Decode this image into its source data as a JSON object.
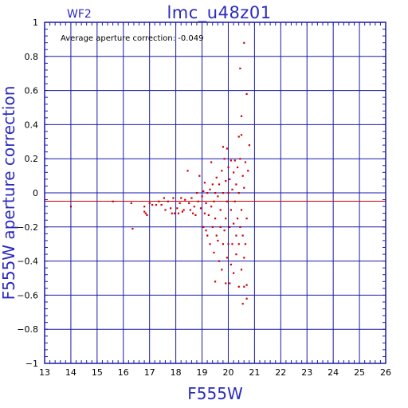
{
  "colors": {
    "grid": "#1a1aa8",
    "axis_frame": "#1a1aa8",
    "text_accent": "#2a2abf",
    "points": "#cc0000",
    "reference_line": "#cc0000"
  },
  "chart_data": {
    "type": "scatter",
    "title": "lmc_u48z01",
    "subtitle": "WF2",
    "annotation": "Average aperture correction: -0.049",
    "xlabel": "F555W",
    "ylabel": "F555W aperture correction",
    "xlim": [
      13,
      26
    ],
    "ylim": [
      -1,
      1
    ],
    "x_ticks": [
      13,
      14,
      15,
      16,
      17,
      18,
      19,
      20,
      21,
      22,
      23,
      24,
      25,
      26
    ],
    "y_ticks": [
      -1,
      -0.8,
      -0.6,
      -0.4,
      -0.2,
      0,
      0.2,
      0.4,
      0.6,
      0.8,
      1
    ],
    "x_tick_labels": [
      "13",
      "14",
      "15",
      "16",
      "17",
      "18",
      "19",
      "20",
      "21",
      "22",
      "23",
      "24",
      "25",
      "26"
    ],
    "y_tick_labels": [
      "−1",
      "−0.8",
      "−0.6",
      "−0.4",
      "−0.2",
      "0",
      "0.2",
      "0.4",
      "0.6",
      "0.8",
      "1"
    ],
    "grid": true,
    "reference_line_y": -0.049,
    "points": [
      [
        14.0,
        -0.08
      ],
      [
        15.6,
        -0.05
      ],
      [
        16.3,
        -0.06
      ],
      [
        16.35,
        -0.21
      ],
      [
        16.8,
        -0.08
      ],
      [
        16.8,
        -0.11
      ],
      [
        16.85,
        -0.12
      ],
      [
        16.9,
        -0.13
      ],
      [
        17.0,
        -0.06
      ],
      [
        17.1,
        -0.07
      ],
      [
        17.25,
        -0.07
      ],
      [
        17.35,
        -0.05
      ],
      [
        17.45,
        -0.07
      ],
      [
        17.55,
        -0.03
      ],
      [
        17.6,
        -0.1
      ],
      [
        17.7,
        -0.05
      ],
      [
        17.8,
        -0.09
      ],
      [
        17.85,
        -0.12
      ],
      [
        17.9,
        -0.03
      ],
      [
        17.95,
        -0.12
      ],
      [
        18.05,
        -0.09
      ],
      [
        18.1,
        -0.12
      ],
      [
        18.15,
        -0.06
      ],
      [
        18.2,
        -0.03
      ],
      [
        18.25,
        -0.11
      ],
      [
        18.3,
        -0.1
      ],
      [
        18.35,
        -0.04
      ],
      [
        18.45,
        0.13
      ],
      [
        18.5,
        -0.06
      ],
      [
        18.55,
        -0.1
      ],
      [
        18.6,
        -0.03
      ],
      [
        18.65,
        -0.12
      ],
      [
        18.7,
        -0.08
      ],
      [
        18.75,
        -0.13
      ],
      [
        18.8,
        0.0
      ],
      [
        18.85,
        -0.05
      ],
      [
        18.9,
        0.1
      ],
      [
        18.95,
        -0.09
      ],
      [
        19.0,
        -0.02
      ],
      [
        19.05,
        -0.2
      ],
      [
        19.05,
        0.01
      ],
      [
        19.1,
        -0.12
      ],
      [
        19.1,
        0.06
      ],
      [
        19.15,
        -0.22
      ],
      [
        19.15,
        -0.06
      ],
      [
        19.2,
        -0.25
      ],
      [
        19.2,
        0.0
      ],
      [
        19.25,
        -0.13
      ],
      [
        19.3,
        -0.3
      ],
      [
        19.3,
        0.02
      ],
      [
        19.35,
        -0.08
      ],
      [
        19.35,
        0.18
      ],
      [
        19.4,
        -0.2
      ],
      [
        19.4,
        0.05
      ],
      [
        19.45,
        -0.35
      ],
      [
        19.45,
        -0.05
      ],
      [
        19.5,
        -0.52
      ],
      [
        19.5,
        0.0
      ],
      [
        19.5,
        -0.15
      ],
      [
        19.55,
        -0.25
      ],
      [
        19.55,
        0.09
      ],
      [
        19.6,
        -0.28
      ],
      [
        19.6,
        -0.02
      ],
      [
        19.65,
        -0.4
      ],
      [
        19.65,
        0.05
      ],
      [
        19.7,
        -0.2
      ],
      [
        19.7,
        -0.1
      ],
      [
        19.75,
        -0.45
      ],
      [
        19.75,
        0.13
      ],
      [
        19.8,
        -0.3
      ],
      [
        19.8,
        0.0
      ],
      [
        19.8,
        0.27
      ],
      [
        19.85,
        -0.22
      ],
      [
        19.85,
        0.2
      ],
      [
        19.9,
        -0.53
      ],
      [
        19.9,
        -0.15
      ],
      [
        19.9,
        0.07
      ],
      [
        19.95,
        -0.38
      ],
      [
        19.95,
        -0.05
      ],
      [
        19.95,
        0.26
      ],
      [
        20.0,
        -0.3
      ],
      [
        20.0,
        0.0
      ],
      [
        20.0,
        0.15
      ],
      [
        20.05,
        -0.53
      ],
      [
        20.05,
        -0.2
      ],
      [
        20.05,
        0.08
      ],
      [
        20.1,
        -0.42
      ],
      [
        20.1,
        -0.1
      ],
      [
        20.1,
        0.19
      ],
      [
        20.15,
        -0.3
      ],
      [
        20.15,
        0.02
      ],
      [
        20.2,
        -0.47
      ],
      [
        20.2,
        -0.18
      ],
      [
        20.2,
        0.12
      ],
      [
        20.25,
        -0.05
      ],
      [
        20.25,
        0.19
      ],
      [
        20.3,
        -0.36
      ],
      [
        20.3,
        -0.25
      ],
      [
        20.3,
        0.05
      ],
      [
        20.35,
        -0.15
      ],
      [
        20.35,
        0.15
      ],
      [
        20.4,
        -0.55
      ],
      [
        20.4,
        -0.3
      ],
      [
        20.4,
        0.0
      ],
      [
        20.4,
        0.33
      ],
      [
        20.45,
        -0.2
      ],
      [
        20.45,
        0.2
      ],
      [
        20.45,
        0.73
      ],
      [
        20.5,
        -0.45
      ],
      [
        20.5,
        -0.1
      ],
      [
        20.5,
        0.45
      ],
      [
        20.5,
        0.34
      ],
      [
        20.55,
        -0.65
      ],
      [
        20.55,
        -0.25
      ],
      [
        20.55,
        0.1
      ],
      [
        20.6,
        -0.55
      ],
      [
        20.6,
        -0.38
      ],
      [
        20.6,
        0.03
      ],
      [
        20.6,
        0.88
      ],
      [
        20.65,
        -0.3
      ],
      [
        20.65,
        0.18
      ],
      [
        20.7,
        -0.62
      ],
      [
        20.7,
        -0.54
      ],
      [
        20.7,
        -0.15
      ],
      [
        20.7,
        0.58
      ],
      [
        20.75,
        0.13
      ],
      [
        20.8,
        0.28
      ]
    ]
  }
}
